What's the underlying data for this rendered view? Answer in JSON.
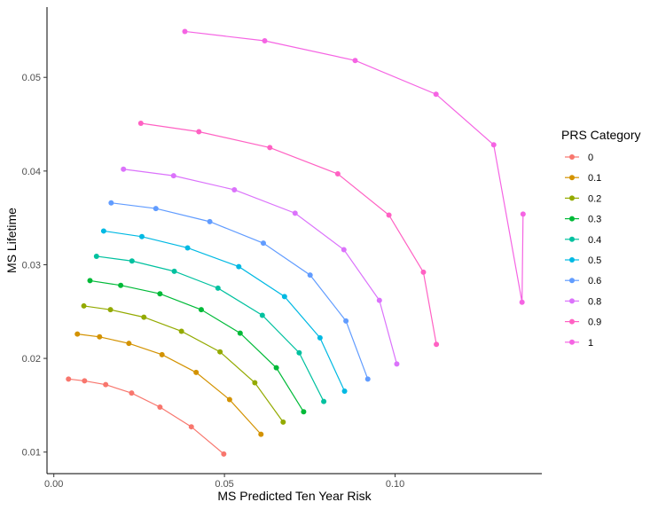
{
  "chart_data": {
    "type": "line",
    "xlabel": "MS Predicted Ten Year Risk",
    "ylabel": "MS Lifetime",
    "xlim": [
      -0.002,
      0.143
    ],
    "ylim": [
      0.0077,
      0.0575
    ],
    "x_ticks": [
      0.0,
      0.05,
      0.1
    ],
    "x_tick_labels": [
      "0.00",
      "0.05",
      "0.10"
    ],
    "y_ticks": [
      0.01,
      0.02,
      0.03,
      0.04,
      0.05
    ],
    "y_tick_labels": [
      "0.01",
      "0.02",
      "0.03",
      "0.04",
      "0.05"
    ],
    "grid": false,
    "legend": {
      "title": "PRS Category",
      "position": "right"
    },
    "series": [
      {
        "name": "0",
        "color": "#F8766D",
        "x": [
          0.0043,
          0.009,
          0.0152,
          0.0228,
          0.0311,
          0.0403,
          0.0498
        ],
        "y": [
          0.0178,
          0.0176,
          0.0172,
          0.0163,
          0.0148,
          0.0127,
          0.0098
        ]
      },
      {
        "name": "0.1",
        "color": "#D39200",
        "x": [
          0.0069,
          0.0134,
          0.022,
          0.0317,
          0.0417,
          0.0515,
          0.0607
        ],
        "y": [
          0.0226,
          0.0223,
          0.0216,
          0.0204,
          0.0185,
          0.0156,
          0.0119
        ]
      },
      {
        "name": "0.2",
        "color": "#93AA00",
        "x": [
          0.0088,
          0.0166,
          0.0264,
          0.0374,
          0.0487,
          0.0589,
          0.0672
        ],
        "y": [
          0.0256,
          0.0252,
          0.0244,
          0.0229,
          0.0207,
          0.0174,
          0.0132
        ]
      },
      {
        "name": "0.3",
        "color": "#00BA38",
        "x": [
          0.0106,
          0.0196,
          0.0311,
          0.0432,
          0.0546,
          0.0652,
          0.0732
        ],
        "y": [
          0.0283,
          0.0278,
          0.0269,
          0.0252,
          0.0227,
          0.019,
          0.0143
        ]
      },
      {
        "name": "0.4",
        "color": "#00C19F",
        "x": [
          0.0125,
          0.0229,
          0.0353,
          0.0481,
          0.0611,
          0.0719,
          0.0791
        ],
        "y": [
          0.0309,
          0.0304,
          0.0293,
          0.0275,
          0.0246,
          0.0206,
          0.0154
        ]
      },
      {
        "name": "0.5",
        "color": "#00B9E3",
        "x": [
          0.0146,
          0.0258,
          0.0392,
          0.0542,
          0.0676,
          0.078,
          0.0852
        ],
        "y": [
          0.0336,
          0.033,
          0.0318,
          0.0298,
          0.0266,
          0.0222,
          0.0165
        ]
      },
      {
        "name": "0.6",
        "color": "#619CFF",
        "x": [
          0.0168,
          0.0299,
          0.0457,
          0.0614,
          0.0751,
          0.0856,
          0.092
        ],
        "y": [
          0.0366,
          0.036,
          0.0346,
          0.0323,
          0.0289,
          0.024,
          0.0178
        ]
      },
      {
        "name": "0.8",
        "color": "#DB72FB",
        "x": [
          0.0204,
          0.0351,
          0.0529,
          0.0707,
          0.085,
          0.0954,
          0.1005
        ],
        "y": [
          0.0402,
          0.0395,
          0.038,
          0.0355,
          0.0316,
          0.0262,
          0.0194
        ]
      },
      {
        "name": "0.9",
        "color": "#FF61C3",
        "x": [
          0.0255,
          0.0425,
          0.0633,
          0.0832,
          0.0982,
          0.1083,
          0.1121
        ],
        "y": [
          0.0451,
          0.0442,
          0.0425,
          0.0397,
          0.0353,
          0.0292,
          0.0215
        ]
      },
      {
        "name": "1",
        "color": "#F564E3",
        "x": [
          0.0384,
          0.0618,
          0.0883,
          0.112,
          0.1289,
          0.1372,
          0.1375
        ],
        "y": [
          0.0549,
          0.0539,
          0.0518,
          0.0482,
          0.0428,
          0.026,
          0.0354
        ]
      }
    ]
  }
}
